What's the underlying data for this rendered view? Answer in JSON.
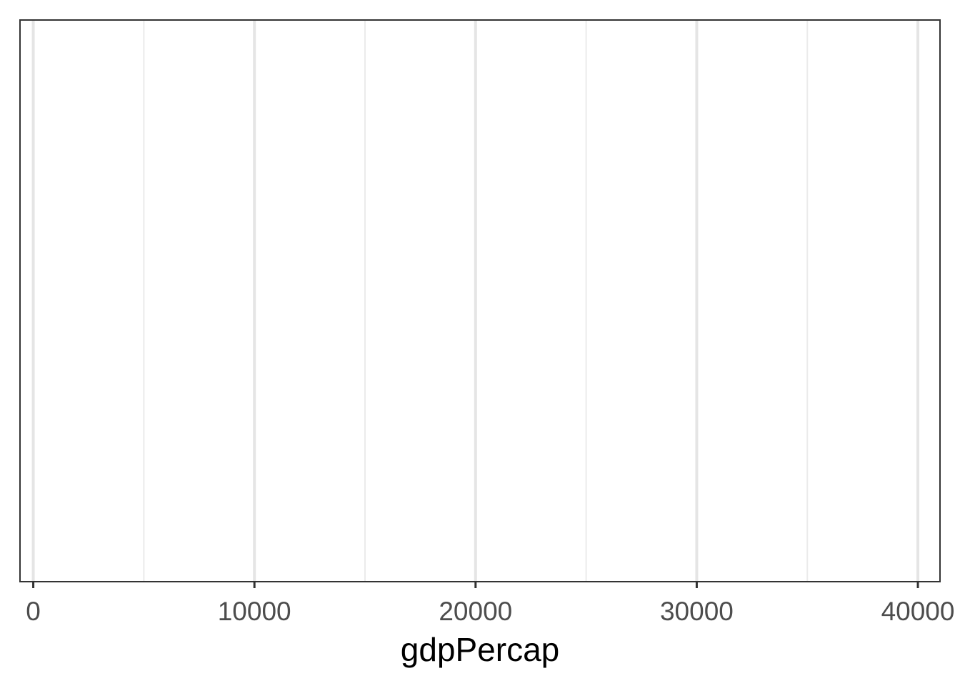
{
  "chart_data": {
    "type": "scatter",
    "title": "",
    "xlabel": "gdpPercap",
    "ylabel": "",
    "xlim": [
      -600,
      41000
    ],
    "x_ticks": [
      0,
      10000,
      20000,
      30000,
      40000
    ],
    "x_tick_labels": [
      "0",
      "10000",
      "20000",
      "30000",
      "40000"
    ],
    "x_minor_ticks": [
      5000,
      15000,
      25000,
      35000
    ],
    "grid": true,
    "legend": "none",
    "points": [],
    "colors": {
      "panel_border": "#333333",
      "major_grid": "#e5e5e5",
      "minor_grid": "#ebebeb",
      "tick_label": "#4d4d4d",
      "axis_title": "#000000"
    }
  }
}
